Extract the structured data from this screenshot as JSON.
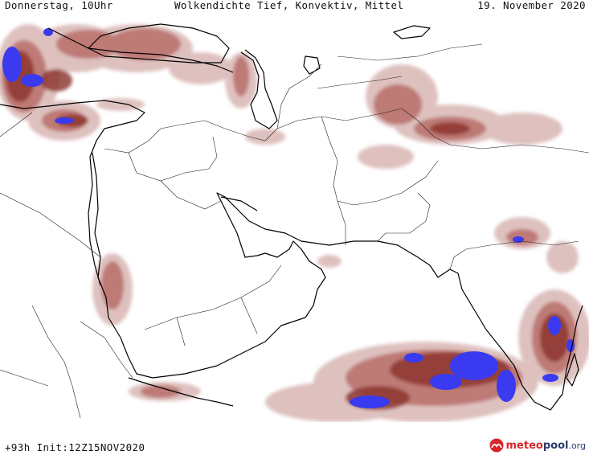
{
  "header": {
    "day_time": "Donnerstag, 10Uhr",
    "title": "Wolkendichte   Tief, Konvektiv, Mittel",
    "date": "19. November 2020"
  },
  "footer": {
    "run_info": "+93h  Init:12Z15NOV2020",
    "brand_meteo": "meteo",
    "brand_pool": "pool",
    "brand_tld": ".org"
  },
  "legend_colors": {
    "cloud_light": "#d9b7b4",
    "cloud_mid": "#b86e68",
    "cloud_dark": "#8a2f2a",
    "cloud_dense": "#3a3af0"
  }
}
